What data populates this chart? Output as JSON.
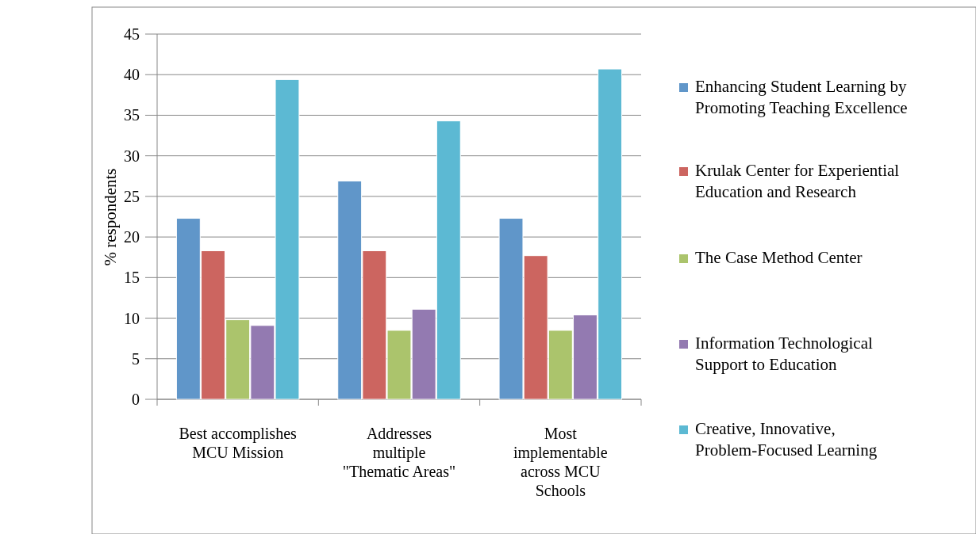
{
  "chart_data": {
    "type": "bar",
    "ylabel": "% respondents",
    "categories": [
      "Best accomplishes MCU Mission",
      "Addresses multiple \"Thematic Areas\"",
      "Most implementable across MCU Schools"
    ],
    "series": [
      {
        "name": "Enhancing Student Learning by Promoting Teaching Excellence",
        "color": "#6096c9",
        "values": [
          22.3,
          26.9,
          22.3
        ]
      },
      {
        "name": "Krulak Center for Experiential Education and Research",
        "color": "#cc6560",
        "values": [
          18.3,
          18.3,
          17.7
        ]
      },
      {
        "name": "The Case Method Center",
        "color": "#abc46c",
        "values": [
          9.8,
          8.5,
          8.5
        ]
      },
      {
        "name": "Information Technological Support to Education",
        "color": "#937ab1",
        "values": [
          9.1,
          11.1,
          10.4
        ]
      },
      {
        "name": "Creative, Innovative, Problem-Focused Learning",
        "color": "#5cb9d3",
        "values": [
          39.4,
          34.3,
          40.7
        ]
      }
    ],
    "ylim": [
      0,
      45
    ],
    "yticks": [
      0,
      5,
      10,
      15,
      20,
      25,
      30,
      35,
      40,
      45
    ],
    "grid": "y",
    "legend": "right"
  }
}
